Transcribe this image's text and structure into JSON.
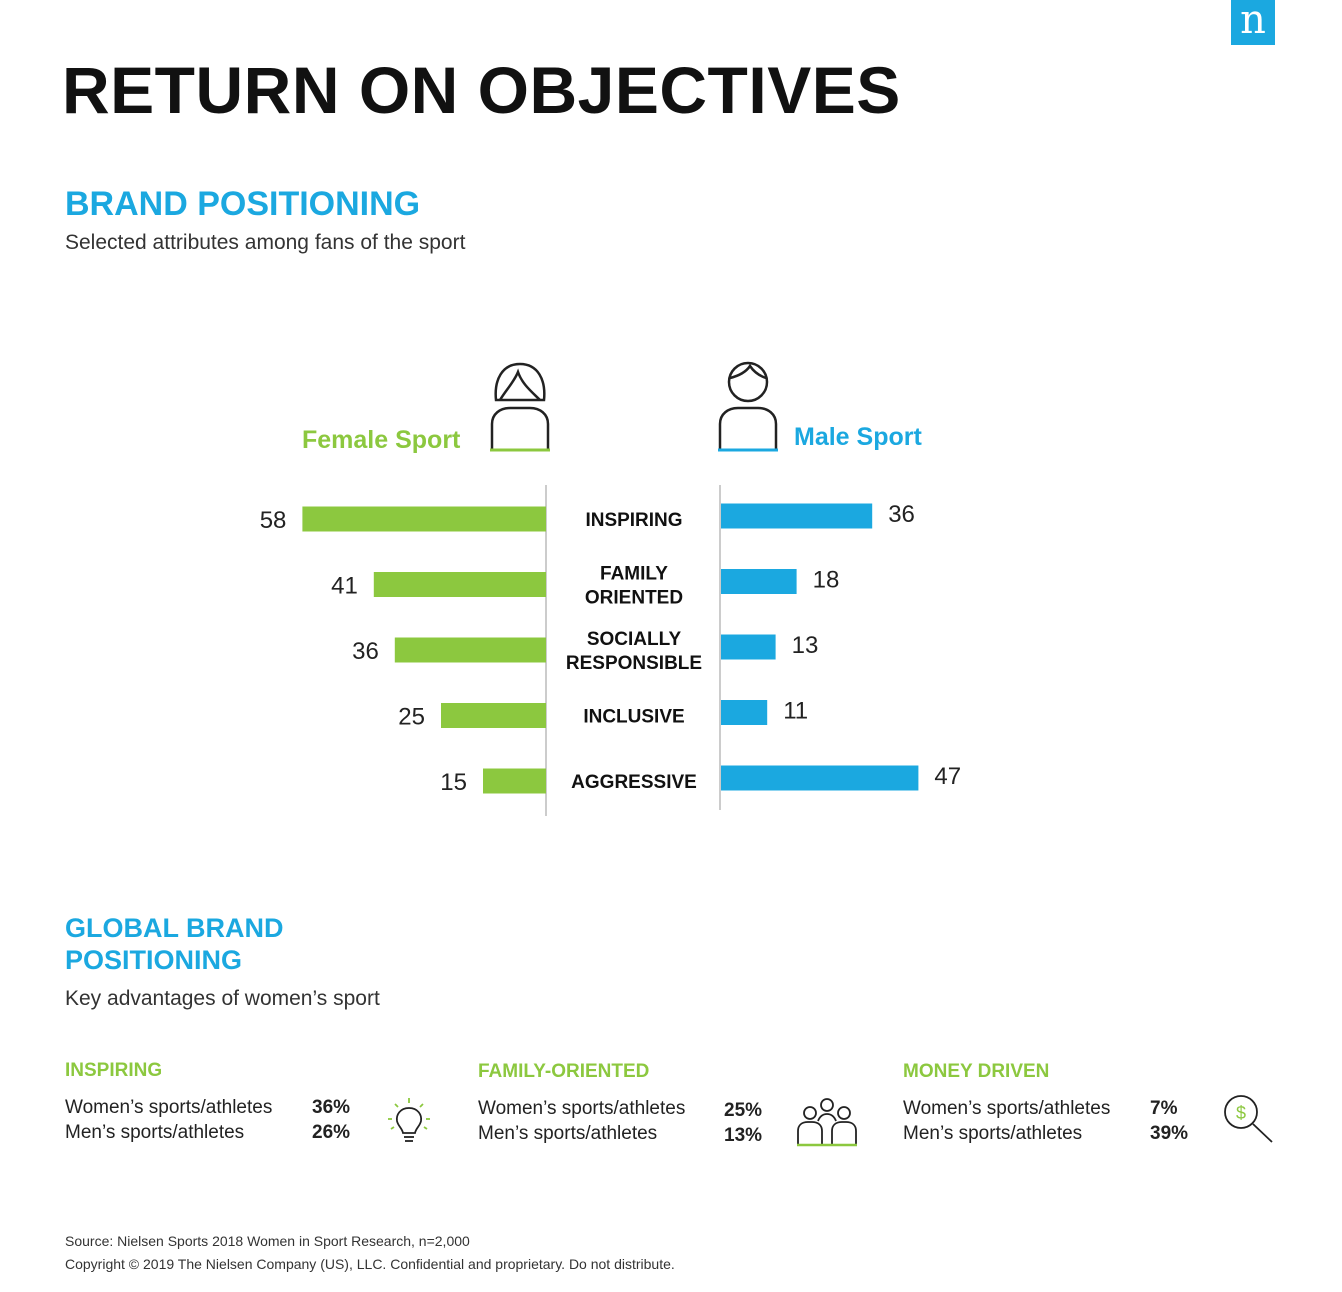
{
  "logo_letter": "n",
  "main_title": "RETURN ON OBJECTIVES",
  "brand_positioning": {
    "title": "BRAND POSITIONING",
    "subtitle": "Selected attributes among fans of the sport"
  },
  "chart_data": {
    "type": "bar",
    "orientation": "horizontal-butterfly",
    "categories": [
      [
        "INSPIRING"
      ],
      [
        "FAMILY",
        "ORIENTED"
      ],
      [
        "SOCIALLY",
        "RESPONSIBLE"
      ],
      [
        "INCLUSIVE"
      ],
      [
        "AGGRESSIVE"
      ]
    ],
    "series": [
      {
        "name": "Female Sport",
        "values": [
          58,
          41,
          36,
          25,
          15
        ],
        "color": "#8cc83f",
        "icon": "female-person-icon"
      },
      {
        "name": "Male Sport",
        "values": [
          36,
          18,
          13,
          11,
          47
        ],
        "color": "#1ba8e0",
        "icon": "male-person-icon"
      }
    ],
    "grid": false
  },
  "global_positioning": {
    "title_line1": "GLOBAL BRAND",
    "title_line2": "POSITIONING",
    "subtitle": "Key advantages of women’s sport",
    "items": [
      {
        "title": "INSPIRING",
        "women_label": "Women’s sports/athletes",
        "women_value": "36%",
        "men_label": "Men’s sports/athletes",
        "men_value": "26%",
        "icon": "lightbulb-icon"
      },
      {
        "title": "FAMILY-ORIENTED",
        "women_label": "Women’s sports/athletes",
        "women_value": "25%",
        "men_label": "Men’s sports/athletes",
        "men_value": "13%",
        "icon": "family-icon"
      },
      {
        "title": "MONEY DRIVEN",
        "women_label": "Women’s sports/athletes",
        "women_value": "7%",
        "men_label": "Men’s sports/athletes",
        "men_value": "39%",
        "icon": "money-magnifier-icon"
      }
    ]
  },
  "footer": {
    "source": "Source: Nielsen Sports 2018 Women in Sport Research, n=2,000",
    "copyright": "Copyright © 2019 The Nielsen Company (US), LLC. Confidential and proprietary. Do not distribute."
  }
}
